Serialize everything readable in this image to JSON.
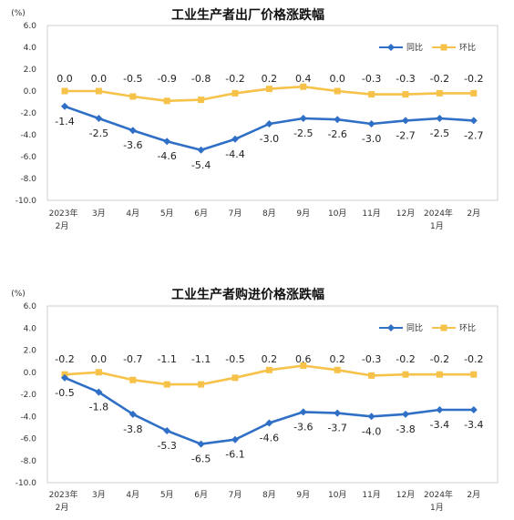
{
  "chart_data": [
    {
      "type": "line",
      "title": "工业生产者出厂价格涨跌幅",
      "ylabel": "(%)",
      "ylim": [
        -10.0,
        6.0
      ],
      "yticks": [
        "6.0",
        "4.0",
        "2.0",
        "0.0",
        "-2.0",
        "-4.0",
        "-6.0",
        "-8.0",
        "-10.0"
      ],
      "categories": [
        "2023年2月",
        "3月",
        "4月",
        "5月",
        "6月",
        "7月",
        "8月",
        "9月",
        "10月",
        "11月",
        "12月",
        "2024年1月",
        "2月"
      ],
      "series": [
        {
          "name": "同比",
          "color": "#2f6fc6",
          "marker": "diamond",
          "values": [
            -1.4,
            -2.5,
            -3.6,
            -4.6,
            -5.4,
            -4.4,
            -3.0,
            -2.5,
            -2.6,
            -3.0,
            -2.7,
            -2.5,
            -2.7
          ]
        },
        {
          "name": "环比",
          "color": "#f6c24a",
          "marker": "square",
          "values": [
            0.0,
            0.0,
            -0.5,
            -0.9,
            -0.8,
            -0.2,
            0.2,
            0.4,
            0.0,
            -0.3,
            -0.3,
            -0.2,
            -0.2
          ]
        }
      ],
      "grid": false,
      "legend": "top-right"
    },
    {
      "type": "line",
      "title": "工业生产者购进价格涨跌幅",
      "ylabel": "(%)",
      "ylim": [
        -10.0,
        6.0
      ],
      "yticks": [
        "6.0",
        "4.0",
        "2.0",
        "0.0",
        "-2.0",
        "-4.0",
        "-6.0",
        "-8.0",
        "-10.0"
      ],
      "categories": [
        "2023年2月",
        "3月",
        "4月",
        "5月",
        "6月",
        "7月",
        "8月",
        "9月",
        "10月",
        "11月",
        "12月",
        "2024年1月",
        "2月"
      ],
      "series": [
        {
          "name": "同比",
          "color": "#2f6fc6",
          "marker": "diamond",
          "values": [
            -0.5,
            -1.8,
            -3.8,
            -5.3,
            -6.5,
            -6.1,
            -4.6,
            -3.6,
            -3.7,
            -4.0,
            -3.8,
            -3.4,
            -3.4
          ]
        },
        {
          "name": "环比",
          "color": "#f6c24a",
          "marker": "square",
          "values": [
            -0.2,
            0.0,
            -0.7,
            -1.1,
            -1.1,
            -0.5,
            0.2,
            0.6,
            0.2,
            -0.3,
            -0.2,
            -0.2,
            -0.2
          ]
        }
      ],
      "grid": false,
      "legend": "top-right"
    }
  ]
}
